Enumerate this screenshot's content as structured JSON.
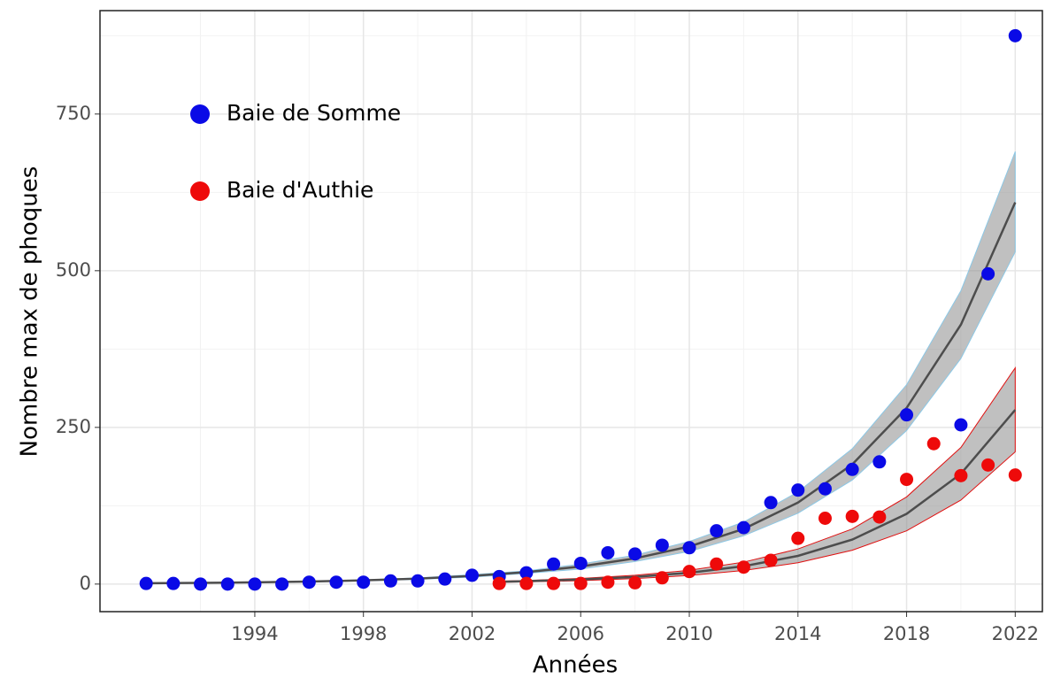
{
  "chart_data": {
    "type": "scatter",
    "xlabel": "Années",
    "ylabel": "Nombre max de phoques",
    "xlim": [
      1988.3,
      2023
    ],
    "ylim": [
      -44,
      915
    ],
    "xticks": [
      1994,
      1998,
      2002,
      2006,
      2010,
      2014,
      2018,
      2022
    ],
    "xminorticks": [
      1992,
      1996,
      2000,
      2004,
      2008,
      2012,
      2016,
      2020
    ],
    "yticks": [
      0,
      250,
      500,
      750
    ],
    "yminorticks": [
      125,
      375,
      625,
      875
    ],
    "grid": true,
    "legend": "upper left",
    "series": [
      {
        "name": "Baie de Somme",
        "color": "#0a0ae6",
        "x": [
          1990,
          1991,
          1992,
          1993,
          1994,
          1995,
          1996,
          1997,
          1998,
          1999,
          2000,
          2001,
          2002,
          2003,
          2004,
          2005,
          2006,
          2007,
          2008,
          2009,
          2010,
          2011,
          2012,
          2013,
          2014,
          2015,
          2016,
          2017,
          2018,
          2019,
          2020,
          2021,
          2022
        ],
        "values": [
          1,
          1,
          0,
          0,
          0,
          0,
          3,
          3,
          3,
          5,
          5,
          8,
          14,
          12,
          18,
          32,
          33,
          50,
          48,
          62,
          58,
          85,
          90,
          130,
          150,
          152,
          183,
          195,
          270,
          null,
          254,
          495,
          875
        ],
        "fit": {
          "x": [
            1990,
            1992,
            1994,
            1996,
            1998,
            2000,
            2002,
            2004,
            2006,
            2008,
            2010,
            2012,
            2014,
            2016,
            2018,
            2020,
            2022
          ],
          "values": [
            1.3,
            1.9,
            2.7,
            4.0,
            5.9,
            8.7,
            13,
            19,
            28,
            41,
            60,
            88,
            130,
            191,
            281,
            414,
            609
          ],
          "lower": [
            1.1,
            1.6,
            2.3,
            3.5,
            5.1,
            7.6,
            11,
            17,
            24,
            36,
            52,
            77,
            113,
            166,
            245,
            360,
            530
          ],
          "upper": [
            1.5,
            2.1,
            3.1,
            4.5,
            6.7,
            9.8,
            15,
            21,
            32,
            46,
            68,
            99,
            147,
            216,
            318,
            468,
            690
          ]
        }
      },
      {
        "name": "Baie d'Authie",
        "color": "#ee0a0a",
        "x": [
          2003,
          2004,
          2005,
          2006,
          2007,
          2008,
          2009,
          2010,
          2011,
          2012,
          2013,
          2014,
          2015,
          2016,
          2017,
          2018,
          2019,
          2020,
          2021,
          2022
        ],
        "values": [
          1,
          1,
          1,
          1,
          3,
          2,
          10,
          20,
          32,
          27,
          38,
          73,
          105,
          108,
          107,
          167,
          224,
          173,
          190,
          174
        ],
        "fit": {
          "x": [
            2003,
            2004,
            2006,
            2008,
            2010,
            2012,
            2014,
            2016,
            2018,
            2020,
            2022
          ],
          "values": [
            3.7,
            4.6,
            7.3,
            11.5,
            18,
            28.5,
            45,
            71,
            112,
            176,
            278
          ],
          "lower": [
            2.8,
            3.5,
            5.5,
            8.7,
            13.7,
            21.7,
            34,
            54,
            85,
            134,
            211
          ],
          "upper": [
            4.6,
            5.7,
            9,
            14,
            22,
            35,
            56,
            88,
            139,
            218,
            345
          ]
        }
      }
    ]
  }
}
